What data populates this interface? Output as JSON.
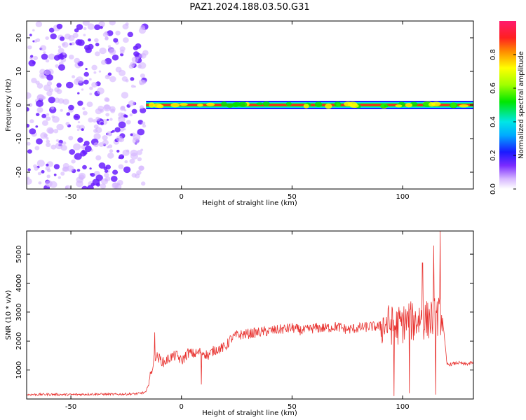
{
  "figure": {
    "title": "PAZ1.2024.188.03.50.G31"
  },
  "chart_data": [
    {
      "type": "heatmap",
      "title": "PAZ1.2024.188.03.50.G31",
      "xlabel": "Height of straight line (km)",
      "ylabel": "Frequency (Hz)",
      "xlim": [
        -70,
        132
      ],
      "ylim": [
        -25,
        25
      ],
      "x_ticks": [
        -50,
        0,
        50,
        100
      ],
      "y_ticks": [
        -20,
        -10,
        0,
        10,
        20
      ],
      "colorbar": {
        "label": "Normalized spectral amplitude",
        "range": [
          0,
          1
        ],
        "ticks": [
          0.0,
          0.2,
          0.4,
          0.6,
          0.8
        ],
        "colormap": "rainbow (white-violet-blue-cyan-green-yellow-red-magenta)"
      },
      "regions": [
        {
          "x_range": [
            -70,
            -16
          ],
          "frequency_range": [
            -25,
            25
          ],
          "description": "scattered low-amplitude noise",
          "normalized_amplitude": [
            0.0,
            0.2
          ]
        },
        {
          "x_range": [
            -16,
            132
          ],
          "frequency": 0,
          "description": "narrow band centered at 0 Hz",
          "normalized_amplitude": [
            0.8,
            1.0
          ]
        }
      ],
      "grid": false
    },
    {
      "type": "line",
      "xlabel": "Height of straight line (km)",
      "ylabel": "SNR (10 * v/v)",
      "xlim": [
        -70,
        132
      ],
      "ylim": [
        0,
        5800
      ],
      "x_ticks": [
        -50,
        0,
        50,
        100
      ],
      "y_ticks": [
        1000,
        2000,
        3000,
        4000,
        5000
      ],
      "line_color": "#e8322f",
      "grid": false,
      "series": [
        {
          "x": [
            -70,
            -60,
            -50,
            -40,
            -30,
            -20,
            -16,
            -14,
            -12,
            -10,
            -8,
            -5,
            -2,
            0,
            3,
            6,
            9,
            12,
            15,
            18,
            20,
            22,
            25,
            30,
            35,
            40,
            45,
            50,
            55,
            60,
            65,
            70,
            75,
            80,
            85,
            90,
            93,
            95,
            97,
            100,
            103,
            105,
            108,
            110,
            112,
            114,
            116,
            118,
            120,
            122,
            125,
            128,
            132
          ],
          "y": [
            150,
            160,
            150,
            170,
            160,
            180,
            230,
            800,
            1500,
            1400,
            1250,
            1450,
            1500,
            1300,
            1600,
            1550,
            1650,
            1500,
            1700,
            1750,
            1800,
            2050,
            2200,
            2250,
            2300,
            2350,
            2400,
            2450,
            2350,
            2450,
            2450,
            2500,
            2400,
            2450,
            2500,
            2500,
            2600,
            2550,
            2500,
            2600,
            2700,
            2650,
            2800,
            2700,
            2750,
            2800,
            2850,
            2850,
            1200,
            1200,
            1250,
            1200,
            1250
          ]
        }
      ],
      "spikes": [
        {
          "x": 114,
          "y": 5300
        },
        {
          "x": 117,
          "y": 5800
        },
        {
          "x": 109,
          "y": 4700
        },
        {
          "x": 96,
          "y": 100
        },
        {
          "x": 103,
          "y": 200
        },
        {
          "x": 115,
          "y": 150
        },
        {
          "x": -12,
          "y": 2300
        },
        {
          "x": 9,
          "y": 500
        }
      ]
    }
  ]
}
